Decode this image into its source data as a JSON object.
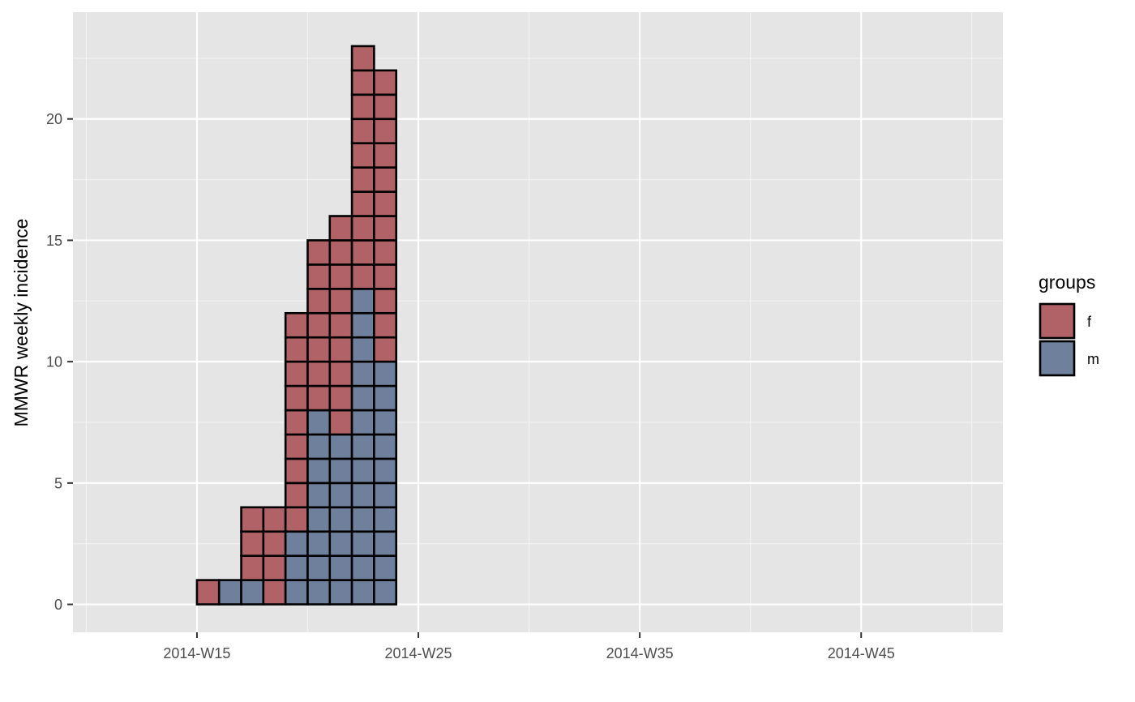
{
  "chart_data": {
    "type": "bar",
    "stacked": true,
    "style": "epicurve-case-squares",
    "title": "",
    "xlabel": "",
    "ylabel": "MMWR weekly incidence",
    "x_week_range": [
      10,
      50
    ],
    "xlim": [
      9.4,
      51.4
    ],
    "ylim": [
      -1.15,
      24.4
    ],
    "x_ticks": [
      {
        "week": 15,
        "label": "2014-W15"
      },
      {
        "week": 25,
        "label": "2014-W25"
      },
      {
        "week": 35,
        "label": "2014-W35"
      },
      {
        "week": 45,
        "label": "2014-W45"
      }
    ],
    "y_ticks": [
      0,
      5,
      10,
      15,
      20
    ],
    "categories": [
      "2014-W15",
      "2014-W16",
      "2014-W17",
      "2014-W18",
      "2014-W19",
      "2014-W20",
      "2014-W21",
      "2014-W22",
      "2014-W23"
    ],
    "weeks": [
      15,
      16,
      17,
      18,
      19,
      20,
      21,
      22,
      23
    ],
    "series": [
      {
        "name": "m",
        "values": [
          0,
          1,
          1,
          0,
          3,
          8,
          7,
          13,
          10
        ]
      },
      {
        "name": "f",
        "values": [
          1,
          0,
          3,
          4,
          9,
          7,
          9,
          10,
          12
        ]
      }
    ],
    "legend": {
      "title": "groups",
      "position": "right",
      "entries": [
        {
          "label": "f",
          "color": "#b06266"
        },
        {
          "label": "m",
          "color": "#6e809b"
        }
      ]
    },
    "colors": {
      "panel_background": "#e5e5e5",
      "grid_major": "#ffffff",
      "grid_minor": "#f2f2f2",
      "tile_border": "#000000"
    },
    "grid": true
  }
}
